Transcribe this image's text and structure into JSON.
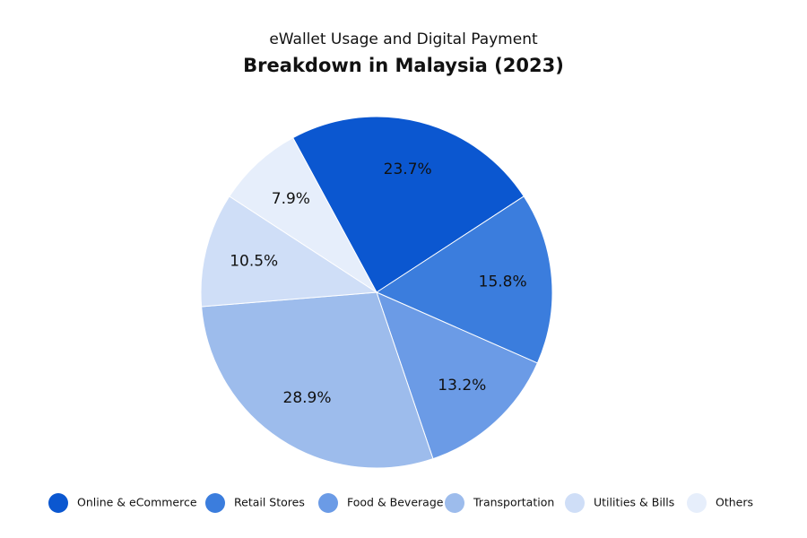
{
  "chart_data": {
    "type": "pie",
    "title_lines": [
      "eWallet Usage and Digital Payment",
      "Breakdown in Malaysia (2023)"
    ],
    "categories": [
      "Online & eCommerce",
      "Retail Stores",
      "Food & Beverage",
      "Transportation",
      "Utilities & Bills",
      "Others"
    ],
    "values": [
      23.7,
      15.8,
      13.2,
      28.9,
      10.5,
      7.9
    ],
    "value_labels": [
      "23.7%",
      "15.8%",
      "13.2%",
      "28.9%",
      "10.5%",
      "7.9%"
    ],
    "colors": [
      "#0b57d0",
      "#3b7ddd",
      "#6b9be6",
      "#9dbcec",
      "#cfdef7",
      "#e6eefb"
    ],
    "legend": "bottom"
  }
}
